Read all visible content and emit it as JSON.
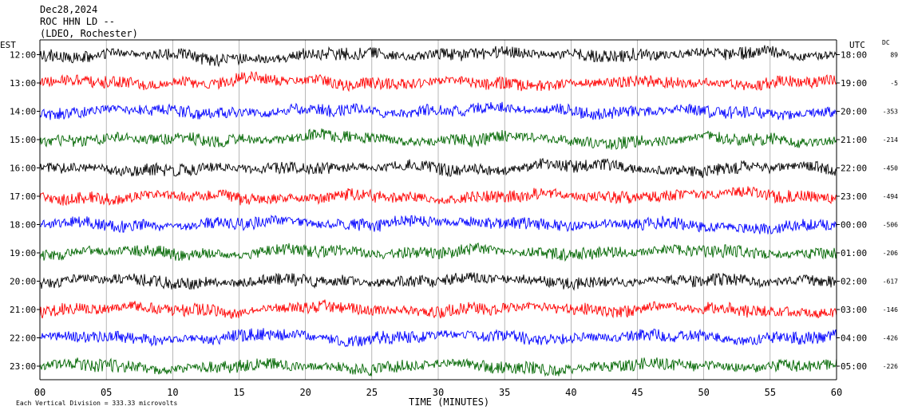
{
  "chart_data": {
    "type": "line",
    "title_lines": [
      "Dec28,2024",
      "ROC HHN LD --",
      "(LDEO, Rochester)"
    ],
    "left_axis_label": "EST",
    "right_axis_label": "UTC",
    "dc_label": "DC",
    "xlabel": "TIME (MINUTES)",
    "xlim": [
      0,
      60
    ],
    "x_ticks": [
      "00",
      "05",
      "10",
      "15",
      "20",
      "25",
      "30",
      "35",
      "40",
      "45",
      "50",
      "55",
      "60"
    ],
    "footer_note": "Each Vertical Division = 333.33 microvolts",
    "grid": true,
    "rows": [
      {
        "est": "12:00",
        "utc": "18:00",
        "dc": "89",
        "color": "#000000"
      },
      {
        "est": "13:00",
        "utc": "19:00",
        "dc": "-5",
        "color": "#ff0000"
      },
      {
        "est": "14:00",
        "utc": "20:00",
        "dc": "-353",
        "color": "#0000ff"
      },
      {
        "est": "15:00",
        "utc": "21:00",
        "dc": "-214",
        "color": "#006600"
      },
      {
        "est": "16:00",
        "utc": "22:00",
        "dc": "-450",
        "color": "#000000"
      },
      {
        "est": "17:00",
        "utc": "23:00",
        "dc": "-494",
        "color": "#ff0000"
      },
      {
        "est": "18:00",
        "utc": "00:00",
        "dc": "-506",
        "color": "#0000ff"
      },
      {
        "est": "19:00",
        "utc": "01:00",
        "dc": "-206",
        "color": "#006600"
      },
      {
        "est": "20:00",
        "utc": "02:00",
        "dc": "-617",
        "color": "#000000"
      },
      {
        "est": "21:00",
        "utc": "03:00",
        "dc": "-146",
        "color": "#ff0000"
      },
      {
        "est": "22:00",
        "utc": "04:00",
        "dc": "-426",
        "color": "#0000ff"
      },
      {
        "est": "23:00",
        "utc": "05:00",
        "dc": "-226",
        "color": "#006600"
      }
    ]
  }
}
